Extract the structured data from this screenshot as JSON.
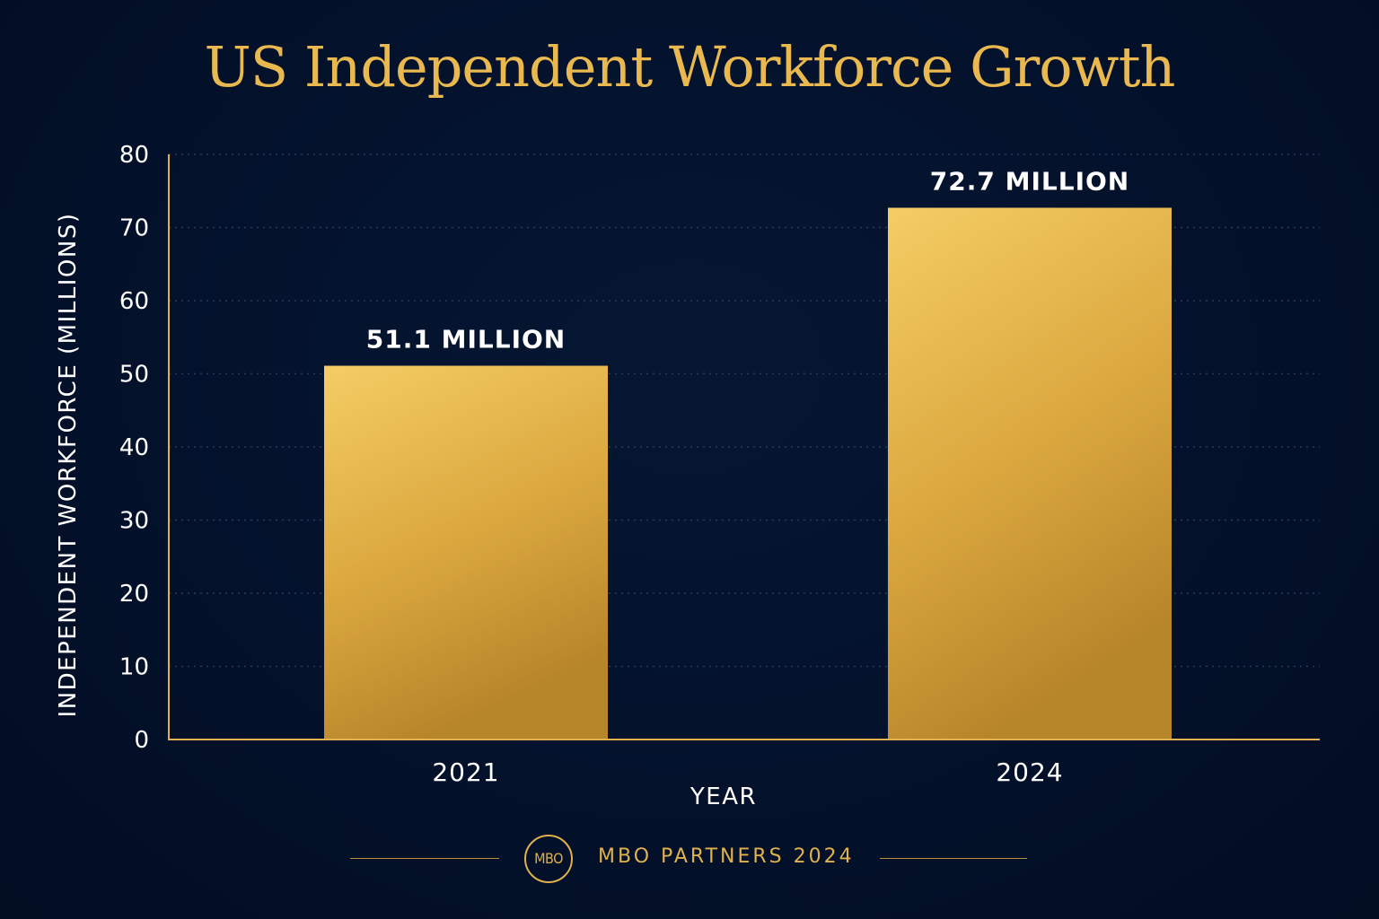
{
  "chart_data": {
    "type": "bar",
    "title": "US Independent Workforce Growth",
    "xlabel": "YEAR",
    "ylabel": "INDEPENDENT WORKFORCE (MILLIONS)",
    "categories": [
      "2021",
      "2024"
    ],
    "values": [
      51.1,
      72.7
    ],
    "data_labels": [
      "51.1 MILLION",
      "72.7 MILLION"
    ],
    "ylim": [
      0,
      80
    ],
    "yticks": [
      0,
      10,
      20,
      30,
      40,
      50,
      60,
      70,
      80
    ],
    "grid": true,
    "legend": "none"
  },
  "colors": {
    "background": "#03112b",
    "bar_gold_light": "#f4cd64",
    "bar_gold_dark": "#b8862a",
    "axis_gold": "#e0b14d",
    "title_gold": "#e9b84f",
    "gridline": "#2b3a5a",
    "text": "#ffffff"
  },
  "footer": {
    "logo_text": "MBO",
    "source": "MBO PARTNERS 2024"
  }
}
